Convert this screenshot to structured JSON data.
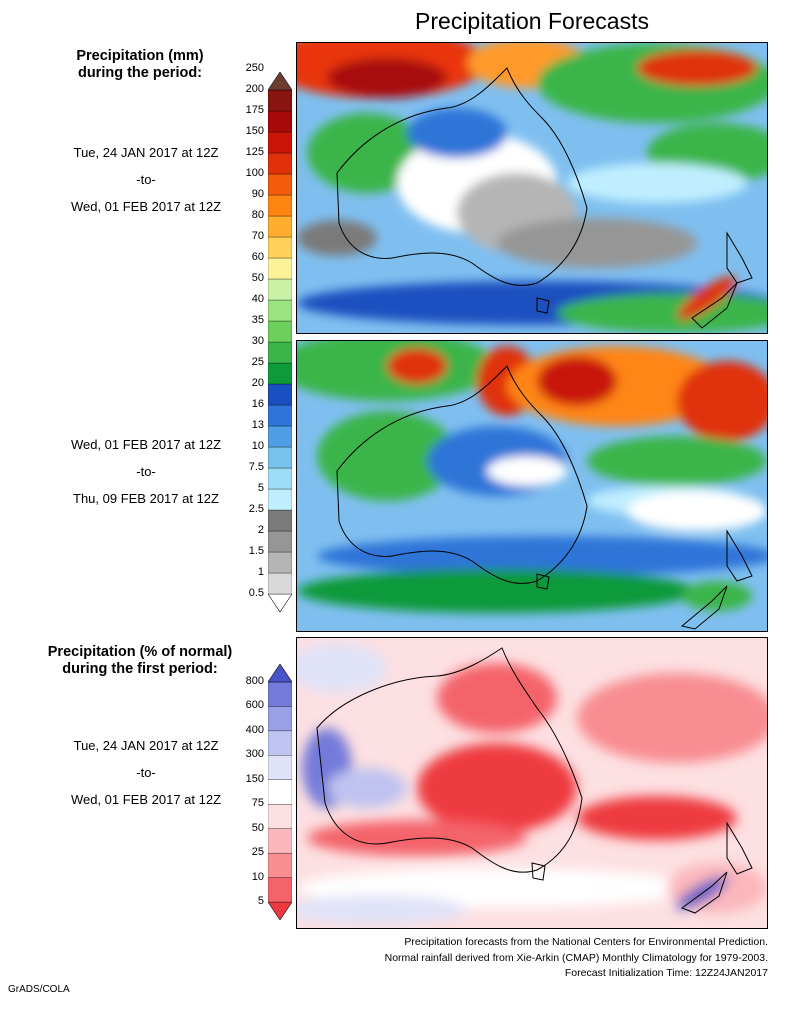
{
  "title": "Precipitation Forecasts",
  "amount_legend": {
    "heading": [
      "Precipitation (mm)",
      "during the period:"
    ],
    "ticks": [
      "0.5",
      "1",
      "1.5",
      "2",
      "2.5",
      "5",
      "7.5",
      "10",
      "13",
      "16",
      "20",
      "25",
      "30",
      "35",
      "40",
      "50",
      "60",
      "70",
      "80",
      "90",
      "100",
      "125",
      "150",
      "175",
      "200",
      "250"
    ],
    "colors": [
      "#ffffff",
      "#d9d9d9",
      "#b5b5b5",
      "#969696",
      "#7a7a7a",
      "#bfefff",
      "#9fdcf5",
      "#78c2ee",
      "#4f9ee4",
      "#2f74d8",
      "#1a4fc0",
      "#0f9a3a",
      "#3bb54a",
      "#6ccf5c",
      "#9be37f",
      "#c9f2a6",
      "#fff09a",
      "#ffd15a",
      "#ffad2e",
      "#ff8512",
      "#f25c0a",
      "#e0310a",
      "#c91408",
      "#a80a0a",
      "#8a1410",
      "#6e3c30"
    ]
  },
  "percent_legend": {
    "heading": [
      "Precipitation (% of normal)",
      "during the first period:"
    ],
    "ticks": [
      "5",
      "10",
      "25",
      "50",
      "75",
      "150",
      "300",
      "400",
      "600",
      "800"
    ],
    "colors": [
      "#ee3a3f",
      "#f4636a",
      "#f88d92",
      "#fbb7bb",
      "#fde0e2",
      "#ffffff",
      "#e0e2f8",
      "#bfc3f0",
      "#9aa0e6",
      "#737ad9",
      "#4a52c8"
    ]
  },
  "periods": [
    {
      "start": "Tue, 24 JAN 2017 at 12Z",
      "sep": "-to-",
      "end": "Wed, 01 FEB 2017 at 12Z"
    },
    {
      "start": "Wed, 01 FEB 2017 at 12Z",
      "sep": "-to-",
      "end": "Thu, 09 FEB 2017 at 12Z"
    },
    {
      "start": "Tue, 24 JAN 2017 at 12Z",
      "sep": "-to-",
      "end": "Wed, 01 FEB 2017 at 12Z"
    }
  ],
  "footer": [
    "Precipitation forecasts from the National Centers for Environmental Prediction.",
    "Normal rainfall derived from Xie-Arkin (CMAP) Monthly Climatology for 1979-2003.",
    "Forecast Initialization Time: 12Z24JAN2017"
  ],
  "credit": "GrADS/COLA"
}
